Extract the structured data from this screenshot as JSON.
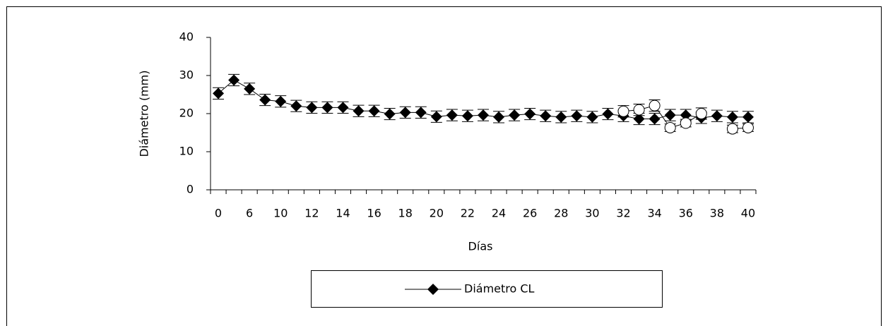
{
  "chart_data": {
    "type": "line",
    "x_label": "Días",
    "y_label": "Diámetro (mm)",
    "categories": [
      "0",
      null,
      "6",
      null,
      "10",
      null,
      "12",
      null,
      "14",
      null,
      "16",
      null,
      "18",
      null,
      "20",
      null,
      "22",
      null,
      "24",
      null,
      "26",
      null,
      "28",
      null,
      "30",
      null,
      "32",
      null,
      "34",
      null,
      "36",
      null,
      "38",
      null,
      "40"
    ],
    "series": [
      {
        "name": "Diámetro CL",
        "color": "#000000",
        "marker": "diamond",
        "values": [
          25.3,
          28.8,
          26.5,
          23.6,
          23.2,
          22,
          21.6,
          21.6,
          21.6,
          20.7,
          20.7,
          19.9,
          20.3,
          20.3,
          19.2,
          19.6,
          19.4,
          19.6,
          19.1,
          19.6,
          19.9,
          19.4,
          19.1,
          19.4,
          19.1,
          19.9,
          19.4,
          18.6,
          18.6,
          19.6,
          19.6,
          18.9,
          19.4,
          19.1,
          19.1
        ],
        "errors": [
          1.5,
          1.5,
          1.5,
          1.5,
          1.5,
          1.5,
          1.5,
          1.5,
          1.5,
          1.5,
          1.5,
          1.5,
          1.5,
          1.5,
          1.5,
          1.5,
          1.5,
          1.5,
          1.5,
          1.5,
          1.5,
          1.5,
          1.5,
          1.5,
          1.5,
          1.5,
          1.5,
          1.5,
          1.5,
          1.5,
          1.5,
          1.5,
          1.5,
          1.5,
          1.5
        ]
      },
      {
        "color": "#000000",
        "marker": "circle",
        "values": [
          null,
          null,
          null,
          null,
          null,
          null,
          null,
          null,
          null,
          null,
          null,
          null,
          null,
          null,
          null,
          null,
          null,
          null,
          null,
          null,
          null,
          null,
          null,
          null,
          null,
          null,
          20.6,
          21,
          22.1,
          16.3,
          17.5,
          20,
          null,
          16,
          16.3
        ],
        "errors": [
          null,
          null,
          null,
          null,
          null,
          null,
          null,
          null,
          null,
          null,
          null,
          null,
          null,
          null,
          null,
          null,
          null,
          null,
          null,
          null,
          null,
          null,
          null,
          null,
          null,
          null,
          1.5,
          1.5,
          1.5,
          1,
          1,
          1.5,
          null,
          1,
          1
        ]
      }
    ],
    "ylim": [
      0,
      40
    ],
    "yticks": [
      0,
      10,
      20,
      30,
      40
    ],
    "grid": false
  }
}
